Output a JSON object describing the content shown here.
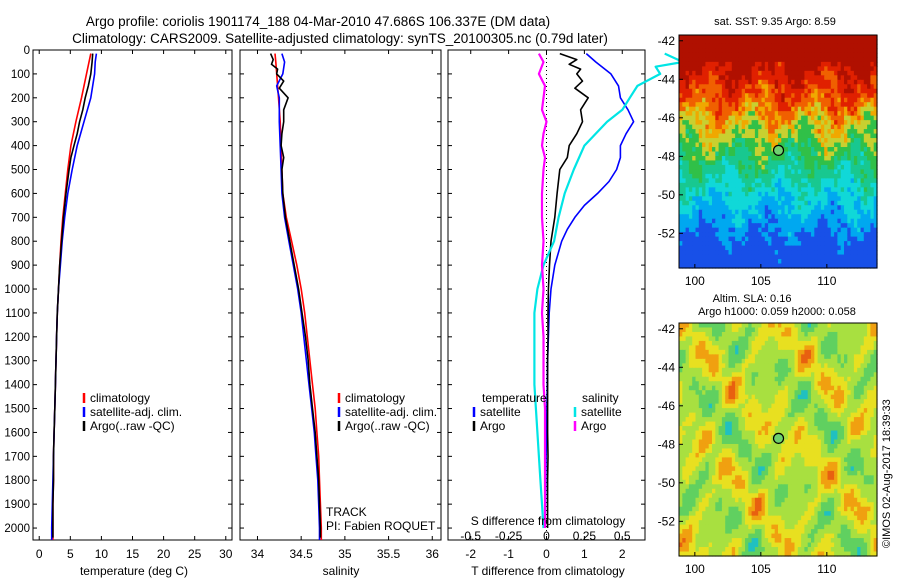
{
  "header": {
    "line1": "Argo profile: coriolis 1901174_188 04-Mar-2010 47.686S 106.337E (DM data)",
    "line2": "Climatology: CARS2009. Satellite-adjusted climatology: synTS_20100305.nc (0.79d later)"
  },
  "colors": {
    "climatology": "#ff0000",
    "satellite": "#0000ff",
    "argo": "#000000",
    "salinity_satellite": "#00e5e5",
    "salinity_argo": "#ff00ff",
    "marker": "#6fd16f"
  },
  "depth_axis": {
    "ylim": [
      0,
      2050
    ],
    "ticks": [
      0,
      100,
      200,
      300,
      400,
      500,
      600,
      700,
      800,
      900,
      1000,
      1100,
      1200,
      1300,
      1400,
      1500,
      1600,
      1700,
      1800,
      1900,
      2000
    ]
  },
  "temperature_panel": {
    "xlabel": "temperature (deg C)",
    "xlim": [
      -1,
      31
    ],
    "xticks": [
      0,
      5,
      10,
      15,
      20,
      25,
      30
    ],
    "legend": [
      "climatology",
      "satellite-adj. clim.",
      "Argo(..raw -QC)"
    ]
  },
  "salinity_panel": {
    "xlabel": "salinity",
    "xlim": [
      33.8,
      36.1
    ],
    "xticks": [
      "34",
      "34.5",
      "35",
      "35.5",
      "36"
    ],
    "xtick_values": [
      34,
      34.5,
      35,
      35.5,
      36
    ],
    "legend": [
      "climatology",
      "satellite-adj. clim.",
      "Argo(..raw -QC)"
    ],
    "track_label": "TRACK",
    "pi_label": "PI: Fabien ROQUET"
  },
  "difference_panel": {
    "xlabel_bottom": "T difference from climatology",
    "xlabel_top": "S difference from climatology",
    "t_xticks": [
      "-2",
      "-1",
      "0",
      "1",
      "2"
    ],
    "t_xtick_values": [
      -2,
      -1,
      0,
      1,
      2
    ],
    "s_xticks": [
      "-0.5",
      "-0.25",
      "0",
      "0.25",
      "0.5"
    ],
    "s_xtick_values": [
      -0.5,
      -0.25,
      0,
      0.25,
      0.5
    ],
    "legend_temperature_title": "temperature",
    "legend_salinity_title": "salinity",
    "legend_temperature": [
      "satellite",
      "Argo"
    ],
    "legend_salinity": [
      "satellite",
      "Argo"
    ]
  },
  "sst_map": {
    "title": "sat. SST: 9.35 Argo: 8.59",
    "xticks": [
      "100",
      "105",
      "110"
    ],
    "yticks": [
      "-42",
      "-44",
      "-46",
      "-48",
      "-50",
      "-52"
    ],
    "lon_range": [
      98.8,
      113.8
    ],
    "lat_range": [
      -53.8,
      -41.7
    ],
    "float_position": {
      "lon": 106.34,
      "lat": -47.69
    }
  },
  "sla_map": {
    "title_line1": "Altim. SLA: 0.16",
    "title_line2": "Argo h1000: 0.059 h2000: 0.058",
    "xticks": [
      "100",
      "105",
      "110"
    ],
    "yticks": [
      "-42",
      "-44",
      "-46",
      "-48",
      "-50",
      "-52"
    ],
    "lon_range": [
      98.8,
      113.8
    ],
    "lat_range": [
      -53.8,
      -41.7
    ],
    "float_position": {
      "lon": 106.34,
      "lat": -47.69
    }
  },
  "credit": "©IMOS 02-Aug-2017 18:39:33",
  "chart_data": [
    {
      "type": "line",
      "panel": "temperature",
      "xlabel": "temperature (deg C)",
      "ylabel": "",
      "xlim": [
        -1,
        31
      ],
      "ylim": [
        0,
        2050
      ],
      "series": [
        {
          "name": "climatology",
          "depth": [
            15,
            100,
            200,
            300,
            400,
            500,
            600,
            700,
            800,
            900,
            1000,
            1100,
            1200,
            1300,
            1400,
            1500,
            1600,
            1700,
            1800,
            1900,
            2000,
            2050
          ],
          "values": [
            8.3,
            7.6,
            6.8,
            5.9,
            5.1,
            4.6,
            4.2,
            3.8,
            3.5,
            3.3,
            3.1,
            2.9,
            2.8,
            2.7,
            2.6,
            2.5,
            2.4,
            2.3,
            2.3,
            2.2,
            2.2,
            2.2
          ]
        },
        {
          "name": "satellite-adj. clim.",
          "depth": [
            15,
            50,
            100,
            200,
            300,
            400,
            500,
            600,
            700,
            800,
            900,
            1000,
            1100,
            1200,
            1300,
            1400,
            1500,
            1600,
            1700,
            1800,
            1900,
            2000,
            2050
          ],
          "values": [
            9.2,
            9.0,
            8.9,
            8.3,
            7.2,
            6.1,
            5.3,
            4.6,
            4.1,
            3.7,
            3.4,
            3.1,
            2.9,
            2.8,
            2.7,
            2.6,
            2.5,
            2.4,
            2.3,
            2.2,
            2.1,
            2.0,
            2.0
          ]
        },
        {
          "name": "Argo(..raw -QC)",
          "depth": [
            15,
            50,
            100,
            150,
            200,
            250,
            300,
            350,
            400,
            450,
            500,
            600,
            700,
            800,
            900,
            1000,
            1100,
            1200,
            1300,
            1400,
            1500,
            1600,
            1700,
            1800,
            1900,
            2000,
            2040
          ],
          "values": [
            8.6,
            8.5,
            8.3,
            7.9,
            7.4,
            7.0,
            6.5,
            6.1,
            5.6,
            5.1,
            4.8,
            4.3,
            3.9,
            3.6,
            3.3,
            3.1,
            2.9,
            2.8,
            2.7,
            2.6,
            2.5,
            2.4,
            2.3,
            2.3,
            2.2,
            2.2,
            2.2
          ]
        }
      ]
    },
    {
      "type": "line",
      "panel": "salinity",
      "xlabel": "salinity",
      "ylabel": "",
      "xlim": [
        33.8,
        36.1
      ],
      "ylim": [
        0,
        2050
      ],
      "series": [
        {
          "name": "climatology",
          "depth": [
            15,
            50,
            100,
            200,
            300,
            400,
            500,
            600,
            700,
            800,
            900,
            1000,
            1100,
            1200,
            1300,
            1400,
            1500,
            1600,
            1700,
            1800,
            1900,
            2000,
            2050
          ],
          "values": [
            34.2,
            34.21,
            34.22,
            34.24,
            34.26,
            34.27,
            34.28,
            34.29,
            34.33,
            34.39,
            34.45,
            34.5,
            34.54,
            34.57,
            34.6,
            34.63,
            34.66,
            34.68,
            34.7,
            34.71,
            34.72,
            34.73,
            34.73
          ]
        },
        {
          "name": "satellite-adj. clim.",
          "depth": [
            15,
            50,
            100,
            150,
            200,
            300,
            400,
            500,
            600,
            700,
            800,
            900,
            1000,
            1100,
            1200,
            1300,
            1400,
            1500,
            1600,
            1700,
            1800,
            1900,
            2000,
            2050
          ],
          "values": [
            34.28,
            34.31,
            34.29,
            34.22,
            34.25,
            34.25,
            34.26,
            34.27,
            34.28,
            34.31,
            34.36,
            34.41,
            34.46,
            34.5,
            34.53,
            34.56,
            34.59,
            34.62,
            34.65,
            34.67,
            34.69,
            34.7,
            34.71,
            34.71
          ]
        },
        {
          "name": "Argo(..raw -QC)",
          "depth": [
            15,
            40,
            60,
            80,
            100,
            130,
            160,
            200,
            250,
            300,
            350,
            400,
            450,
            500,
            600,
            700,
            800,
            900,
            1000,
            1100,
            1200,
            1300,
            1400,
            1500,
            1600,
            1700,
            1800,
            1900,
            2000,
            2040
          ],
          "values": [
            34.15,
            34.18,
            34.16,
            34.23,
            34.22,
            34.3,
            34.25,
            34.35,
            34.3,
            34.3,
            34.28,
            34.27,
            34.3,
            34.28,
            34.29,
            34.32,
            34.37,
            34.42,
            34.47,
            34.51,
            34.55,
            34.58,
            34.6,
            34.63,
            34.66,
            34.68,
            34.7,
            34.71,
            34.72,
            34.72
          ]
        }
      ]
    },
    {
      "type": "line",
      "panel": "difference",
      "xlabel": "T difference from climatology",
      "xlabel_top": "S difference from climatology",
      "xlim": [
        -2.6,
        2.6
      ],
      "ylim": [
        0,
        2050
      ],
      "series": [
        {
          "name": "satellite",
          "group": "temperature",
          "depth": [
            15,
            50,
            100,
            150,
            200,
            250,
            300,
            350,
            400,
            450,
            500,
            550,
            600,
            650,
            700,
            750,
            800,
            900,
            1000,
            1100,
            1200,
            1300,
            1400,
            1500,
            1600,
            1700,
            1800,
            1900,
            2000
          ],
          "values": [
            1.05,
            1.3,
            1.7,
            1.9,
            1.95,
            2.15,
            2.3,
            2.1,
            1.95,
            1.95,
            1.85,
            1.65,
            1.35,
            1.0,
            0.75,
            0.55,
            0.4,
            0.22,
            0.12,
            0.07,
            0.05,
            0.03,
            0.02,
            0.01,
            0.0,
            -0.01,
            -0.02,
            -0.03,
            -0.04
          ]
        },
        {
          "name": "Argo",
          "group": "temperature",
          "depth": [
            15,
            40,
            60,
            80,
            100,
            130,
            160,
            200,
            250,
            300,
            350,
            400,
            450,
            500,
            600,
            700,
            800,
            900,
            1000,
            1100,
            1200,
            1300,
            1400,
            1500,
            1600,
            1700,
            1800,
            1900,
            2000
          ],
          "values": [
            0.35,
            0.8,
            0.6,
            0.9,
            0.8,
            0.95,
            0.75,
            1.1,
            0.9,
            0.95,
            0.8,
            0.6,
            0.55,
            0.35,
            0.28,
            0.22,
            0.12,
            0.08,
            0.05,
            0.04,
            0.04,
            0.03,
            0.03,
            0.03,
            0.03,
            0.04,
            0.03,
            0.03,
            0.03
          ]
        },
        {
          "name": "satellite",
          "group": "salinity",
          "depth": [
            15,
            50,
            70,
            100,
            150,
            200,
            250,
            300,
            400,
            500,
            600,
            700,
            800,
            900,
            1000,
            1100,
            1200,
            1300,
            1400,
            1500,
            1600,
            1700,
            1800,
            1900,
            2000
          ],
          "values": [
            0.78,
            0.9,
            0.72,
            0.75,
            0.6,
            0.55,
            0.5,
            0.4,
            0.25,
            0.18,
            0.12,
            0.08,
            0.05,
            -0.02,
            -0.06,
            -0.08,
            -0.08,
            -0.08,
            -0.08,
            -0.07,
            -0.06,
            -0.05,
            -0.04,
            -0.03,
            -0.02
          ]
        },
        {
          "name": "Argo",
          "group": "salinity",
          "depth": [
            15,
            50,
            100,
            150,
            200,
            250,
            300,
            350,
            400,
            450,
            500,
            600,
            700,
            800,
            900,
            1000,
            1100,
            1200,
            1300,
            1400,
            1500,
            1600,
            1700,
            1800,
            1900,
            2000
          ],
          "values": [
            -0.05,
            -0.02,
            -0.05,
            -0.01,
            -0.02,
            -0.03,
            0.0,
            -0.02,
            -0.03,
            -0.01,
            -0.02,
            -0.03,
            -0.03,
            -0.02,
            -0.03,
            -0.02,
            -0.03,
            -0.02,
            -0.02,
            -0.02,
            -0.01,
            -0.01,
            -0.01,
            -0.01,
            -0.01,
            -0.01
          ]
        }
      ]
    },
    {
      "type": "heatmap",
      "panel": "sst_map",
      "title": "sat. SST: 9.35 Argo: 8.59",
      "xlim": [
        98.8,
        113.8
      ],
      "ylim": [
        -53.8,
        -41.7
      ]
    },
    {
      "type": "heatmap",
      "panel": "sla_map",
      "title": "Altim. SLA: 0.16",
      "xlim": [
        98.8,
        113.8
      ],
      "ylim": [
        -53.8,
        -41.7
      ]
    }
  ]
}
